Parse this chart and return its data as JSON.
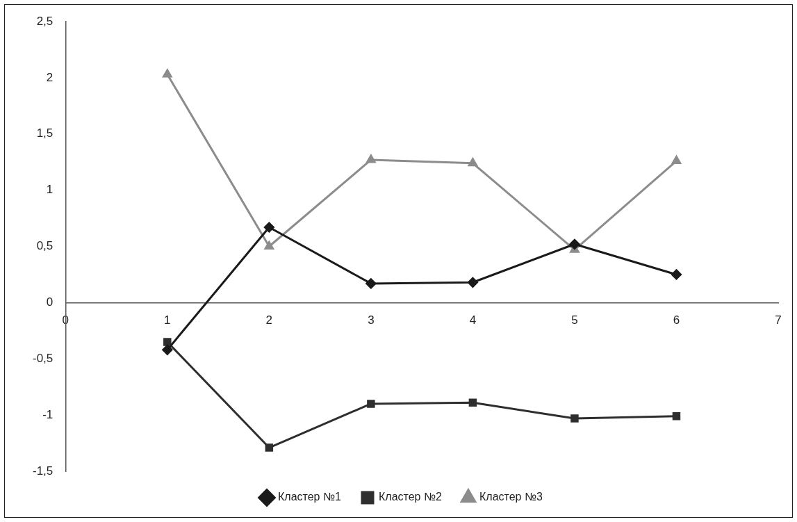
{
  "chart_data": {
    "type": "line",
    "x": [
      1,
      2,
      3,
      4,
      5,
      6
    ],
    "series": [
      {
        "name": "Кластер №1",
        "color": "#1a1a1a",
        "marker": "diamond",
        "values": [
          -0.42,
          0.67,
          0.17,
          0.18,
          0.52,
          0.25
        ]
      },
      {
        "name": "Кластер №2",
        "color": "#2e2e2e",
        "marker": "square",
        "values": [
          -0.35,
          -1.29,
          -0.9,
          -0.89,
          -1.03,
          -1.01
        ]
      },
      {
        "name": "Кластер №3",
        "color": "#8c8c8c",
        "marker": "triangle",
        "values": [
          2.03,
          0.5,
          1.27,
          1.24,
          0.47,
          1.26
        ]
      }
    ],
    "xlim": [
      0,
      7
    ],
    "xticks": [
      0,
      1,
      2,
      3,
      4,
      5,
      6,
      7
    ],
    "ylim": [
      -1.5,
      2.5
    ],
    "yticks": [
      {
        "value": -1.5,
        "label": "-1,5"
      },
      -1,
      {
        "value": -0.5,
        "label": "-0,5"
      },
      0,
      {
        "value": 0.5,
        "label": "0,5"
      },
      1,
      {
        "value": 1.5,
        "label": "1,5"
      },
      2,
      {
        "value": 2.5,
        "label": "2,5"
      }
    ],
    "grid": false,
    "legend": "bottom",
    "line_style": "solid"
  }
}
